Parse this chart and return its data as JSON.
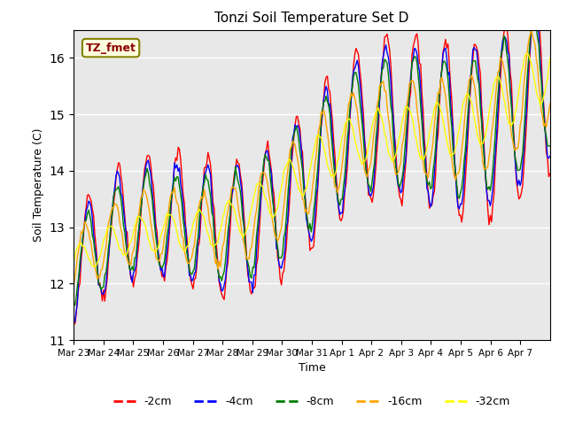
{
  "title": "Tonzi Soil Temperature Set D",
  "xlabel": "Time",
  "ylabel": "Soil Temperature (C)",
  "legend_label": "TZ_fmet",
  "ylim": [
    11.0,
    16.5
  ],
  "series_colors": [
    "red",
    "blue",
    "green",
    "orange",
    "yellow"
  ],
  "series_labels": [
    "-2cm",
    "-4cm",
    "-8cm",
    "-16cm",
    "-32cm"
  ],
  "background_color": "#e8e8e8",
  "tick_labels": [
    "Mar 23",
    "Mar 24",
    "Mar 25",
    "Mar 26",
    "Mar 27",
    "Mar 28",
    "Mar 29",
    "Mar 30",
    "Mar 31",
    "Apr 1",
    "Apr 2",
    "Apr 3",
    "Apr 4",
    "Apr 5",
    "Apr 6",
    "Apr 7"
  ],
  "grid_color": "white",
  "legend_box_facecolor": "lightyellow",
  "legend_box_edgecolor": "olive",
  "legend_text_color": "darkred"
}
